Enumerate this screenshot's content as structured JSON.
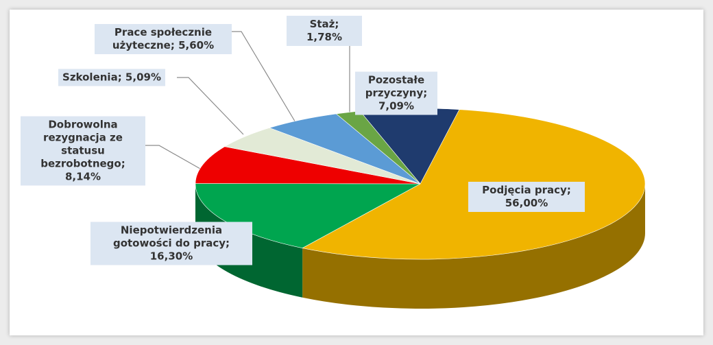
{
  "chart_data": {
    "type": "pie",
    "categories": [
      "Podjęcia pracy;",
      "Niepotwierdzenia gotowości do pracy;",
      "Dobrowolna rezygnacja ze statusu bezrobotnego;",
      "Szkolenia;",
      "Prace społecznie użyteczne;",
      "Staż;",
      "Pozostałe przyczyny;"
    ],
    "values": [
      56.0,
      16.3,
      8.14,
      5.09,
      5.6,
      1.78,
      7.09
    ],
    "value_labels": [
      "56,00%",
      "16,30%",
      "8,14%",
      "5,09%",
      "5,60%",
      "1,78%",
      "7,09%"
    ],
    "colors": [
      "#f0b400",
      "#00a54f",
      "#ee0000",
      "#e2ead6",
      "#5b9bd5",
      "#6aa545",
      "#1f3b6e"
    ]
  }
}
